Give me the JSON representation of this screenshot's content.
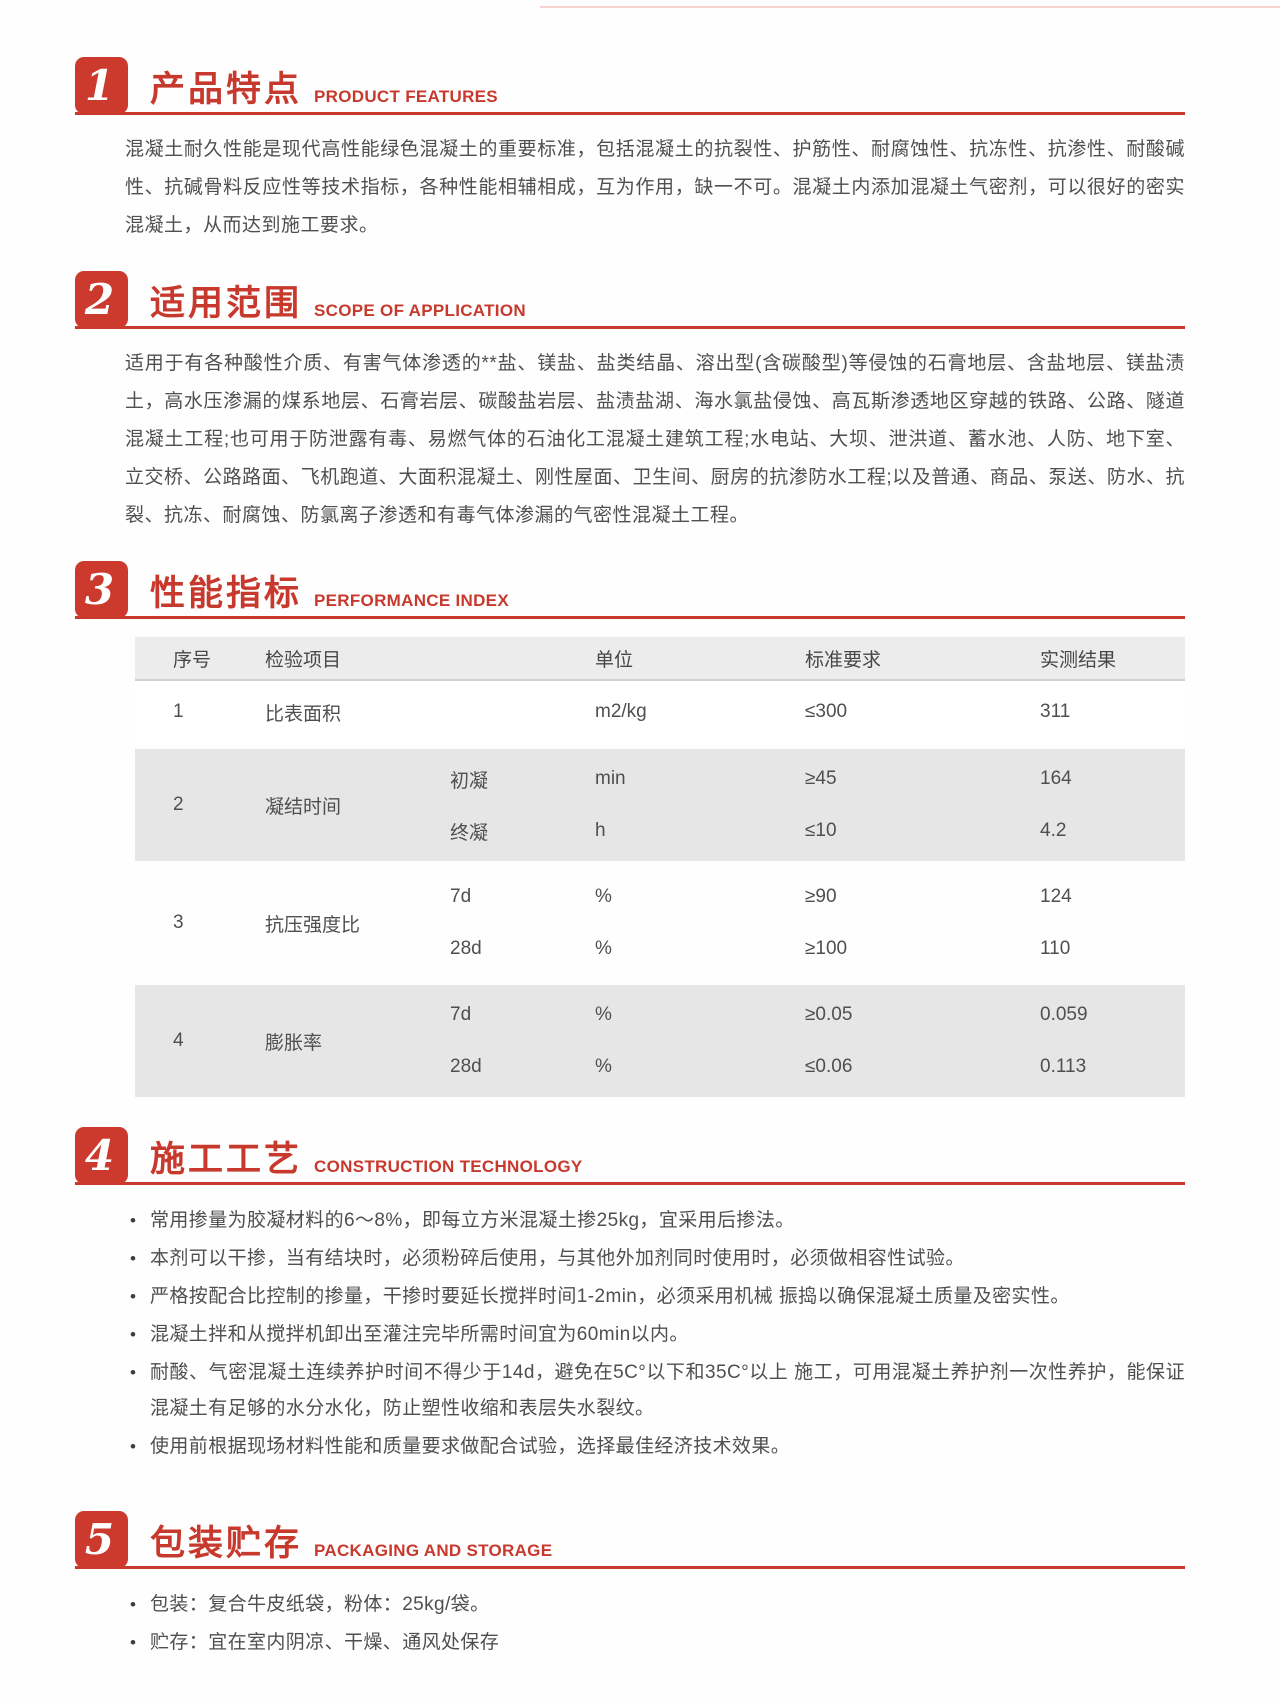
{
  "page": {
    "accent_color": "#c8392d",
    "table_band_color": "#e6e6e6",
    "sections": [
      {
        "number": "1",
        "title_zh": "产品特点",
        "title_en": "PRODUCT FEATURES",
        "paragraph": "混凝土耐久性能是现代高性能绿色混凝土的重要标准，包括混凝土的抗裂性、护筋性、耐腐蚀性、抗冻性、抗渗性、耐酸碱性、抗碱骨料反应性等技术指标，各种性能相辅相成，互为作用，缺一不可。混凝土内添加混凝土气密剂，可以很好的密实混凝土，从而达到施工要求。"
      },
      {
        "number": "2",
        "title_zh": "适用范围",
        "title_en": "SCOPE OF APPLICATION",
        "paragraph": "适用于有各种酸性介质、有害气体渗透的**盐、镁盐、盐类结晶、溶出型(含碳酸型)等侵蚀的石膏地层、含盐地层、镁盐渍土，高水压渗漏的煤系地层、石膏岩层、碳酸盐岩层、盐渍盐湖、海水氯盐侵蚀、高瓦斯渗透地区穿越的铁路、公路、隧道混凝土工程;也可用于防泄露有毒、易燃气体的石油化工混凝土建筑工程;水电站、大坝、泄洪道、蓄水池、人防、地下室、立交桥、公路路面、飞机跑道、大面积混凝土、刚性屋面、卫生间、厨房的抗渗防水工程;以及普通、商品、泵送、防水、抗裂、抗冻、耐腐蚀、防氯离子渗透和有毒气体渗漏的气密性混凝土工程。"
      },
      {
        "number": "3",
        "title_zh": "性能指标",
        "title_en": "PERFORMANCE INDEX",
        "table": {
          "headers": [
            "序号",
            "检验项目",
            "",
            "单位",
            "标准要求",
            "实测结果"
          ],
          "rows": [
            {
              "no": "1",
              "item": "比表面积",
              "sub": [
                {
                  "name": "",
                  "unit": "m2/kg",
                  "req": "≤300",
                  "result": "311"
                }
              ]
            },
            {
              "no": "2",
              "item": "凝结时间",
              "sub": [
                {
                  "name": "初凝",
                  "unit": "min",
                  "req": "≥45",
                  "result": "164"
                },
                {
                  "name": "终凝",
                  "unit": "h",
                  "req": "≤10",
                  "result": "4.2"
                }
              ]
            },
            {
              "no": "3",
              "item": "抗压强度比",
              "sub": [
                {
                  "name": "7d",
                  "unit": "%",
                  "req": "≥90",
                  "result": "124"
                },
                {
                  "name": "28d",
                  "unit": "%",
                  "req": "≥100",
                  "result": "110"
                }
              ]
            },
            {
              "no": "4",
              "item": "膨胀率",
              "sub": [
                {
                  "name": "7d",
                  "unit": "%",
                  "req": "≥0.05",
                  "result": "0.059"
                },
                {
                  "name": "28d",
                  "unit": "%",
                  "req": "≤0.06",
                  "result": "0.113"
                }
              ]
            }
          ]
        }
      },
      {
        "number": "4",
        "title_zh": "施工工艺",
        "title_en": "CONSTRUCTION TECHNOLOGY",
        "bullets": [
          "常用掺量为胶凝材料的6～8%，即每立方米混凝土掺25kg，宜采用后掺法。",
          "本剂可以干掺，当有结块时，必须粉碎后使用，与其他外加剂同时使用时，必须做相容性试验。",
          "严格按配合比控制的掺量，干掺时要延长搅拌时间1-2min，必须采用机械 振捣以确保混凝土质量及密实性。",
          "混凝土拌和从搅拌机卸出至灌注完毕所需时间宜为60min以内。",
          "耐酸、气密混凝土连续养护时间不得少于14d，避免在5C°以下和35C°以上 施工，可用混凝土养护剂一次性养护，能保证混凝土有足够的水分水化，防止塑性收缩和表层失水裂纹。",
          "使用前根据现场材料性能和质量要求做配合试验，选择最佳经济技术效果。"
        ]
      },
      {
        "number": "5",
        "title_zh": "包装贮存",
        "title_en": "PACKAGING AND STORAGE",
        "bullets": [
          "包装：复合牛皮纸袋，粉体：25kg/袋。",
          "贮存：宜在室内阴凉、干燥、通风处保存"
        ]
      }
    ]
  }
}
